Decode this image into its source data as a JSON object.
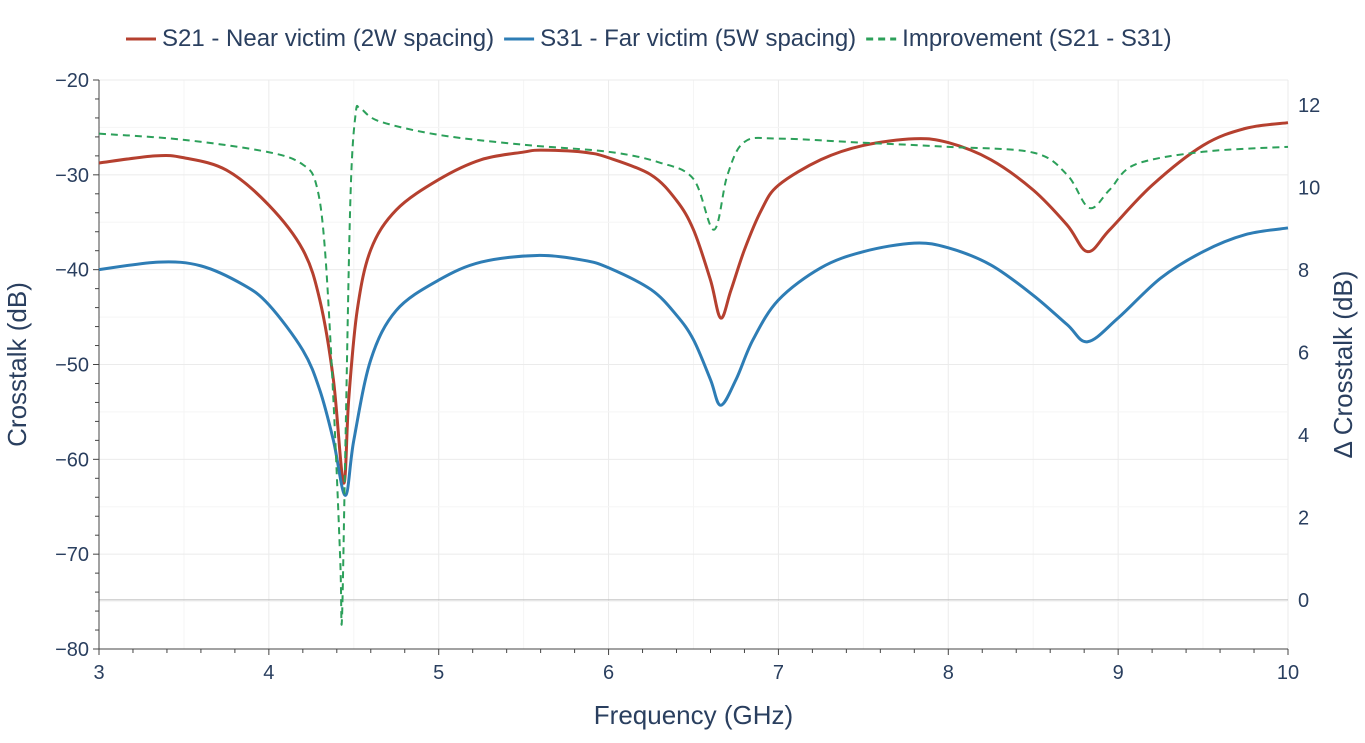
{
  "chart_data": {
    "type": "line",
    "xlabel": "Frequency (GHz)",
    "ylabel": "Crosstalk (dB)",
    "y2label": "Δ Crosstalk (dB)",
    "xlim": [
      3,
      10
    ],
    "ylim": [
      -80,
      -20
    ],
    "y2lim": [
      -1.19,
      12.6
    ],
    "xticks": [
      3,
      4,
      5,
      6,
      7,
      8,
      9,
      10
    ],
    "yticks": [
      -80,
      -70,
      -60,
      -50,
      -40,
      -30,
      -20
    ],
    "y2ticks": [
      0,
      2,
      4,
      6,
      8,
      10,
      12
    ],
    "grid": true,
    "legend_position": "top",
    "series": [
      {
        "name": "S21 - Near victim (2W spacing)",
        "axis": "left",
        "color": "#b5402f",
        "dash": "solid",
        "x": [
          3.0,
          3.33,
          3.5,
          3.75,
          4.0,
          4.2,
          4.3,
          4.38,
          4.44,
          4.47,
          4.52,
          4.6,
          4.75,
          5.0,
          5.25,
          5.5,
          5.6,
          5.85,
          6.0,
          6.25,
          6.4,
          6.5,
          6.6,
          6.66,
          6.72,
          6.8,
          6.9,
          7.0,
          7.25,
          7.5,
          7.8,
          8.0,
          8.25,
          8.5,
          8.7,
          8.82,
          8.95,
          9.2,
          9.5,
          9.75,
          10.0
        ],
        "y": [
          -28.75,
          -28.0,
          -28.2,
          -29.5,
          -33.2,
          -37.9,
          -43.2,
          -51.6,
          -62.5,
          -53.7,
          -44.3,
          -37.9,
          -33.7,
          -30.5,
          -28.4,
          -27.6,
          -27.4,
          -27.6,
          -28.2,
          -30.0,
          -32.7,
          -35.8,
          -41.1,
          -45.1,
          -42.2,
          -37.9,
          -33.7,
          -31.1,
          -28.4,
          -26.9,
          -26.2,
          -26.6,
          -28.4,
          -31.6,
          -35.3,
          -38.1,
          -35.8,
          -31.1,
          -26.9,
          -25.1,
          -24.5
        ]
      },
      {
        "name": "S31 - Far victim (5W spacing)",
        "axis": "left",
        "color": "#2e7db5",
        "dash": "solid",
        "x": [
          3.0,
          3.35,
          3.6,
          3.85,
          4.0,
          4.2,
          4.3,
          4.38,
          4.45,
          4.5,
          4.6,
          4.75,
          5.0,
          5.25,
          5.58,
          5.85,
          6.0,
          6.25,
          6.4,
          6.5,
          6.6,
          6.66,
          6.75,
          6.85,
          7.0,
          7.25,
          7.5,
          7.8,
          8.0,
          8.25,
          8.5,
          8.7,
          8.82,
          9.0,
          9.25,
          9.5,
          9.75,
          10.0
        ],
        "y": [
          -40.0,
          -39.2,
          -39.6,
          -41.6,
          -43.7,
          -48.5,
          -52.7,
          -58.0,
          -63.8,
          -58.0,
          -49.5,
          -44.3,
          -41.1,
          -39.2,
          -38.5,
          -39.0,
          -39.8,
          -42.1,
          -44.8,
          -47.4,
          -51.6,
          -54.3,
          -51.6,
          -47.4,
          -43.2,
          -39.8,
          -38.1,
          -37.2,
          -37.7,
          -39.5,
          -42.7,
          -45.8,
          -47.6,
          -45.1,
          -40.9,
          -38.1,
          -36.3,
          -35.6
        ]
      },
      {
        "name": "Improvement (S21 - S31)",
        "axis": "right",
        "color": "#2ca05a",
        "dash": "dashed",
        "x": [
          3.0,
          3.5,
          4.0,
          4.2,
          4.28,
          4.33,
          4.38,
          4.42,
          4.43,
          4.45,
          4.48,
          4.51,
          4.54,
          4.65,
          5.0,
          5.5,
          6.0,
          6.3,
          6.5,
          6.62,
          6.7,
          6.8,
          7.0,
          7.5,
          8.0,
          8.5,
          8.7,
          8.83,
          8.95,
          9.1,
          9.5,
          10.0
        ],
        "y": [
          11.3,
          11.15,
          10.85,
          10.55,
          10.05,
          8.5,
          4.85,
          1.0,
          -0.5,
          3.6,
          9.7,
          11.75,
          11.9,
          11.6,
          11.27,
          11.03,
          10.86,
          10.6,
          10.2,
          8.97,
          10.3,
          11.1,
          11.18,
          11.08,
          10.98,
          10.84,
          10.3,
          9.5,
          9.94,
          10.55,
          10.86,
          10.98
        ]
      }
    ]
  }
}
